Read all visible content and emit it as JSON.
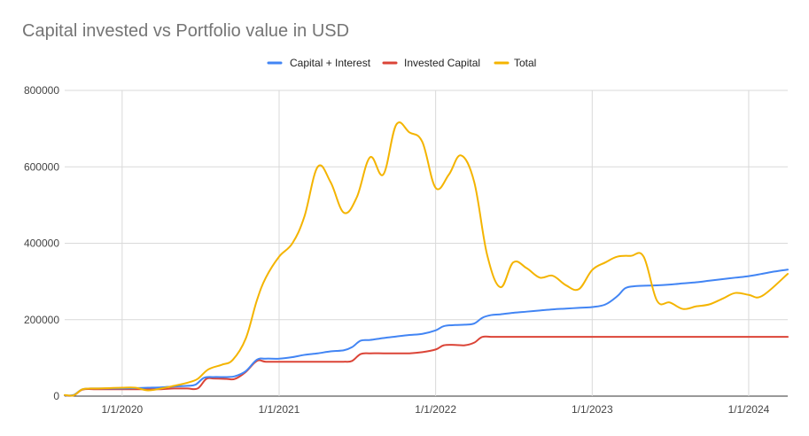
{
  "chart_data": {
    "type": "line",
    "title": "Capital invested vs Portfolio value in USD",
    "xlabel": "",
    "ylabel": "",
    "ylim": [
      0,
      800000
    ],
    "y_ticks": [
      "0",
      "200000",
      "400000",
      "600000",
      "800000"
    ],
    "x_ticks": [
      "1/1/2020",
      "1/1/2021",
      "1/1/2022",
      "1/1/2023",
      "1/1/2024"
    ],
    "grid": true,
    "legend_position": "top",
    "series": [
      {
        "name": "Capital + Interest",
        "color": "#4285f4",
        "points": [
          [
            "2019-08-20",
            2000
          ],
          [
            "2019-09-10",
            3000
          ],
          [
            "2019-10-01",
            18000
          ],
          [
            "2019-11-01",
            20000
          ],
          [
            "2019-12-01",
            20000
          ],
          [
            "2020-01-01",
            20000
          ],
          [
            "2020-02-01",
            21000
          ],
          [
            "2020-03-01",
            22000
          ],
          [
            "2020-04-01",
            23000
          ],
          [
            "2020-05-01",
            25000
          ],
          [
            "2020-06-01",
            27000
          ],
          [
            "2020-06-20",
            30000
          ],
          [
            "2020-07-10",
            48000
          ],
          [
            "2020-08-01",
            50000
          ],
          [
            "2020-09-01",
            50000
          ],
          [
            "2020-09-20",
            52000
          ],
          [
            "2020-10-15",
            65000
          ],
          [
            "2020-11-10",
            95000
          ],
          [
            "2020-12-01",
            98000
          ],
          [
            "2021-01-01",
            98000
          ],
          [
            "2021-02-01",
            102000
          ],
          [
            "2021-03-01",
            108000
          ],
          [
            "2021-04-01",
            112000
          ],
          [
            "2021-05-01",
            117000
          ],
          [
            "2021-06-01",
            120000
          ],
          [
            "2021-06-20",
            128000
          ],
          [
            "2021-07-10",
            145000
          ],
          [
            "2021-08-01",
            147000
          ],
          [
            "2021-09-01",
            152000
          ],
          [
            "2021-10-01",
            156000
          ],
          [
            "2021-11-01",
            160000
          ],
          [
            "2021-12-01",
            163000
          ],
          [
            "2022-01-01",
            172000
          ],
          [
            "2022-01-20",
            183000
          ],
          [
            "2022-02-15",
            186000
          ],
          [
            "2022-03-10",
            187000
          ],
          [
            "2022-04-01",
            190000
          ],
          [
            "2022-04-20",
            205000
          ],
          [
            "2022-05-10",
            212000
          ],
          [
            "2022-06-01",
            214000
          ],
          [
            "2022-07-01",
            218000
          ],
          [
            "2022-08-01",
            221000
          ],
          [
            "2022-09-01",
            224000
          ],
          [
            "2022-10-01",
            227000
          ],
          [
            "2022-11-01",
            229000
          ],
          [
            "2022-12-01",
            231000
          ],
          [
            "2023-01-01",
            233000
          ],
          [
            "2023-02-01",
            240000
          ],
          [
            "2023-03-01",
            262000
          ],
          [
            "2023-03-20",
            283000
          ],
          [
            "2023-04-15",
            288000
          ],
          [
            "2023-06-01",
            290000
          ],
          [
            "2023-07-01",
            292000
          ],
          [
            "2023-08-01",
            295000
          ],
          [
            "2023-09-01",
            298000
          ],
          [
            "2023-10-01",
            302000
          ],
          [
            "2023-11-01",
            306000
          ],
          [
            "2023-12-01",
            310000
          ],
          [
            "2024-01-01",
            314000
          ],
          [
            "2024-02-01",
            320000
          ],
          [
            "2024-03-01",
            326000
          ],
          [
            "2024-04-01",
            331000
          ]
        ]
      },
      {
        "name": "Invested Capital",
        "color": "#db4437",
        "points": [
          [
            "2019-08-20",
            2000
          ],
          [
            "2019-09-10",
            2000
          ],
          [
            "2019-10-01",
            17000
          ],
          [
            "2019-11-01",
            18000
          ],
          [
            "2019-12-01",
            18000
          ],
          [
            "2020-01-01",
            18000
          ],
          [
            "2020-02-01",
            18000
          ],
          [
            "2020-03-01",
            18000
          ],
          [
            "2020-04-01",
            18000
          ],
          [
            "2020-05-01",
            20000
          ],
          [
            "2020-06-01",
            20000
          ],
          [
            "2020-06-25",
            20000
          ],
          [
            "2020-07-15",
            45000
          ],
          [
            "2020-08-01",
            46000
          ],
          [
            "2020-09-01",
            45000
          ],
          [
            "2020-09-20",
            45000
          ],
          [
            "2020-10-15",
            63000
          ],
          [
            "2020-11-10",
            92000
          ],
          [
            "2020-12-01",
            90000
          ],
          [
            "2021-01-01",
            90000
          ],
          [
            "2021-02-01",
            90000
          ],
          [
            "2021-03-01",
            90000
          ],
          [
            "2021-04-01",
            90000
          ],
          [
            "2021-05-01",
            90000
          ],
          [
            "2021-06-01",
            90000
          ],
          [
            "2021-06-20",
            92000
          ],
          [
            "2021-07-10",
            110000
          ],
          [
            "2021-08-01",
            112000
          ],
          [
            "2021-09-01",
            112000
          ],
          [
            "2021-10-01",
            112000
          ],
          [
            "2021-11-01",
            112000
          ],
          [
            "2021-12-01",
            115000
          ],
          [
            "2022-01-01",
            122000
          ],
          [
            "2022-01-20",
            133000
          ],
          [
            "2022-02-15",
            134000
          ],
          [
            "2022-03-10",
            133000
          ],
          [
            "2022-04-01",
            140000
          ],
          [
            "2022-04-20",
            155000
          ],
          [
            "2022-05-15",
            155000
          ],
          [
            "2022-07-01",
            155000
          ],
          [
            "2023-01-01",
            155000
          ],
          [
            "2023-07-01",
            155000
          ],
          [
            "2024-01-01",
            155000
          ],
          [
            "2024-04-01",
            155000
          ]
        ]
      },
      {
        "name": "Total",
        "color": "#f4b400",
        "points": [
          [
            "2019-08-20",
            3000
          ],
          [
            "2019-09-10",
            2000
          ],
          [
            "2019-10-01",
            18000
          ],
          [
            "2019-11-01",
            20000
          ],
          [
            "2019-12-01",
            21000
          ],
          [
            "2020-01-01",
            22000
          ],
          [
            "2020-02-01",
            22000
          ],
          [
            "2020-03-01",
            15000
          ],
          [
            "2020-04-01",
            20000
          ],
          [
            "2020-05-01",
            27000
          ],
          [
            "2020-06-01",
            35000
          ],
          [
            "2020-06-25",
            45000
          ],
          [
            "2020-07-20",
            70000
          ],
          [
            "2020-08-20",
            82000
          ],
          [
            "2020-09-15",
            95000
          ],
          [
            "2020-10-15",
            150000
          ],
          [
            "2020-11-10",
            250000
          ],
          [
            "2020-12-01",
            310000
          ],
          [
            "2021-01-01",
            365000
          ],
          [
            "2021-02-01",
            400000
          ],
          [
            "2021-03-01",
            470000
          ],
          [
            "2021-04-01",
            600000
          ],
          [
            "2021-05-01",
            560000
          ],
          [
            "2021-06-01",
            480000
          ],
          [
            "2021-07-01",
            520000
          ],
          [
            "2021-08-01",
            625000
          ],
          [
            "2021-09-01",
            580000
          ],
          [
            "2021-10-01",
            710000
          ],
          [
            "2021-11-01",
            690000
          ],
          [
            "2021-12-01",
            665000
          ],
          [
            "2022-01-01",
            545000
          ],
          [
            "2022-02-01",
            580000
          ],
          [
            "2022-03-01",
            630000
          ],
          [
            "2022-04-01",
            560000
          ],
          [
            "2022-05-01",
            370000
          ],
          [
            "2022-06-01",
            285000
          ],
          [
            "2022-07-01",
            350000
          ],
          [
            "2022-08-01",
            335000
          ],
          [
            "2022-09-01",
            310000
          ],
          [
            "2022-10-01",
            315000
          ],
          [
            "2022-11-01",
            290000
          ],
          [
            "2022-12-01",
            280000
          ],
          [
            "2023-01-01",
            330000
          ],
          [
            "2023-02-01",
            350000
          ],
          [
            "2023-03-01",
            365000
          ],
          [
            "2023-04-01",
            367000
          ],
          [
            "2023-05-01",
            365000
          ],
          [
            "2023-06-01",
            250000
          ],
          [
            "2023-07-01",
            245000
          ],
          [
            "2023-08-01",
            228000
          ],
          [
            "2023-09-01",
            235000
          ],
          [
            "2023-10-01",
            240000
          ],
          [
            "2023-11-01",
            255000
          ],
          [
            "2023-12-01",
            270000
          ],
          [
            "2024-01-01",
            265000
          ],
          [
            "2024-02-01",
            262000
          ],
          [
            "2024-04-01",
            320000
          ]
        ]
      }
    ]
  }
}
